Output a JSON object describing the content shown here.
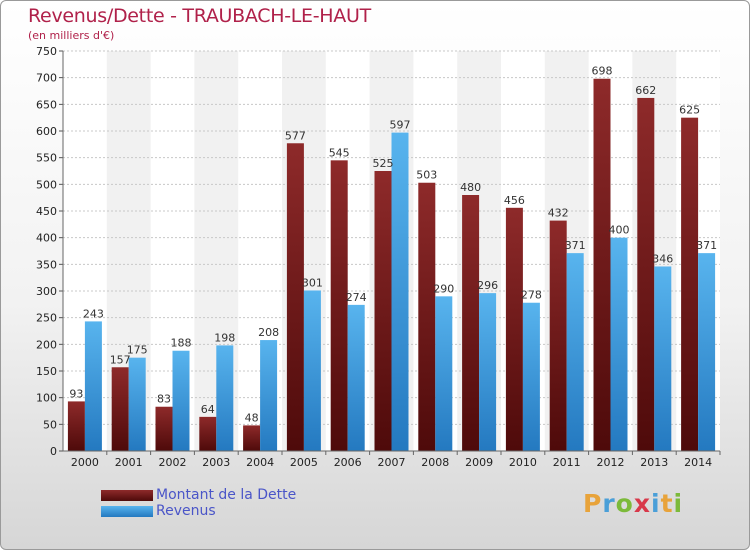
{
  "header": {
    "title": "Revenus/Dette - TRAUBACH-LE-HAUT",
    "subtitle": "(en milliers d'€)"
  },
  "legend": {
    "items": [
      {
        "label": "Montant de la Dette",
        "color": "#7a1d1d"
      },
      {
        "label": "Revenus",
        "color": "#3b9de0"
      }
    ]
  },
  "logo": {
    "text": "Proxiti",
    "letters": [
      "P",
      "r",
      "o",
      "x",
      "i",
      "t",
      "i"
    ],
    "colors": [
      "#e8a33a",
      "#4a9fd8",
      "#7cba3a",
      "#d8384a",
      "#4a9fd8",
      "#e8a33a",
      "#7cba3a"
    ]
  },
  "chart_data": {
    "type": "bar",
    "categories": [
      "2000",
      "2001",
      "2002",
      "2003",
      "2004",
      "2005",
      "2006",
      "2007",
      "2008",
      "2009",
      "2010",
      "2011",
      "2012",
      "2013",
      "2014"
    ],
    "series": [
      {
        "name": "Montant de la Dette",
        "color": "#7a1d1d",
        "values": [
          93,
          157,
          83,
          64,
          48,
          577,
          545,
          525,
          503,
          480,
          456,
          432,
          698,
          662,
          625
        ]
      },
      {
        "name": "Revenus",
        "color": "#3b9de0",
        "values": [
          243,
          175,
          188,
          198,
          208,
          301,
          274,
          597,
          290,
          296,
          278,
          371,
          400,
          346,
          371
        ]
      }
    ],
    "ylim": [
      0,
      750
    ],
    "yticks": [
      0,
      50,
      100,
      150,
      200,
      250,
      300,
      350,
      400,
      450,
      500,
      550,
      600,
      650,
      700,
      750
    ],
    "grid": true,
    "legend_position": "bottom-left"
  }
}
